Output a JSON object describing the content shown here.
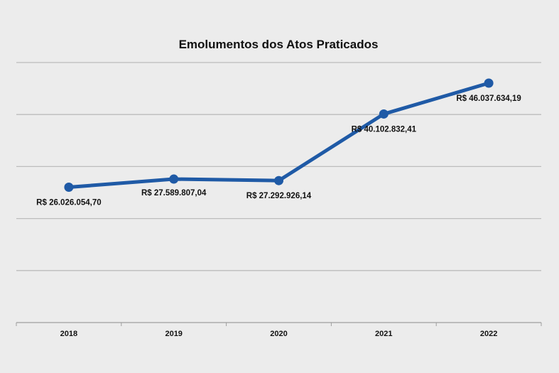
{
  "chart_data": {
    "type": "line",
    "title": "Emolumentos dos Atos Praticados",
    "xlabel": "",
    "ylabel": "",
    "categories": [
      "2018",
      "2019",
      "2020",
      "2021",
      "2022"
    ],
    "series": [
      {
        "name": "Emolumentos",
        "values": [
          26026054.7,
          27589807.04,
          27292926.14,
          40102832.41,
          46037634.19
        ],
        "labels": [
          "R$ 26.026.054,70",
          "R$ 27.589.807,04",
          "R$ 27.292.926,14",
          "R$ 40.102.832,41",
          "R$ 46.037.634,19"
        ],
        "label_positions": [
          "below",
          "above",
          "below",
          "below",
          "below"
        ],
        "color": "#1f5aa6"
      }
    ],
    "ylim": [
      0,
      50000000
    ],
    "grid": true,
    "legend": "none"
  },
  "colors": {
    "background": "#ececec",
    "gridline": "#bdbdbd",
    "axis": "#9e9e9e",
    "line": "#1f5aa6"
  }
}
